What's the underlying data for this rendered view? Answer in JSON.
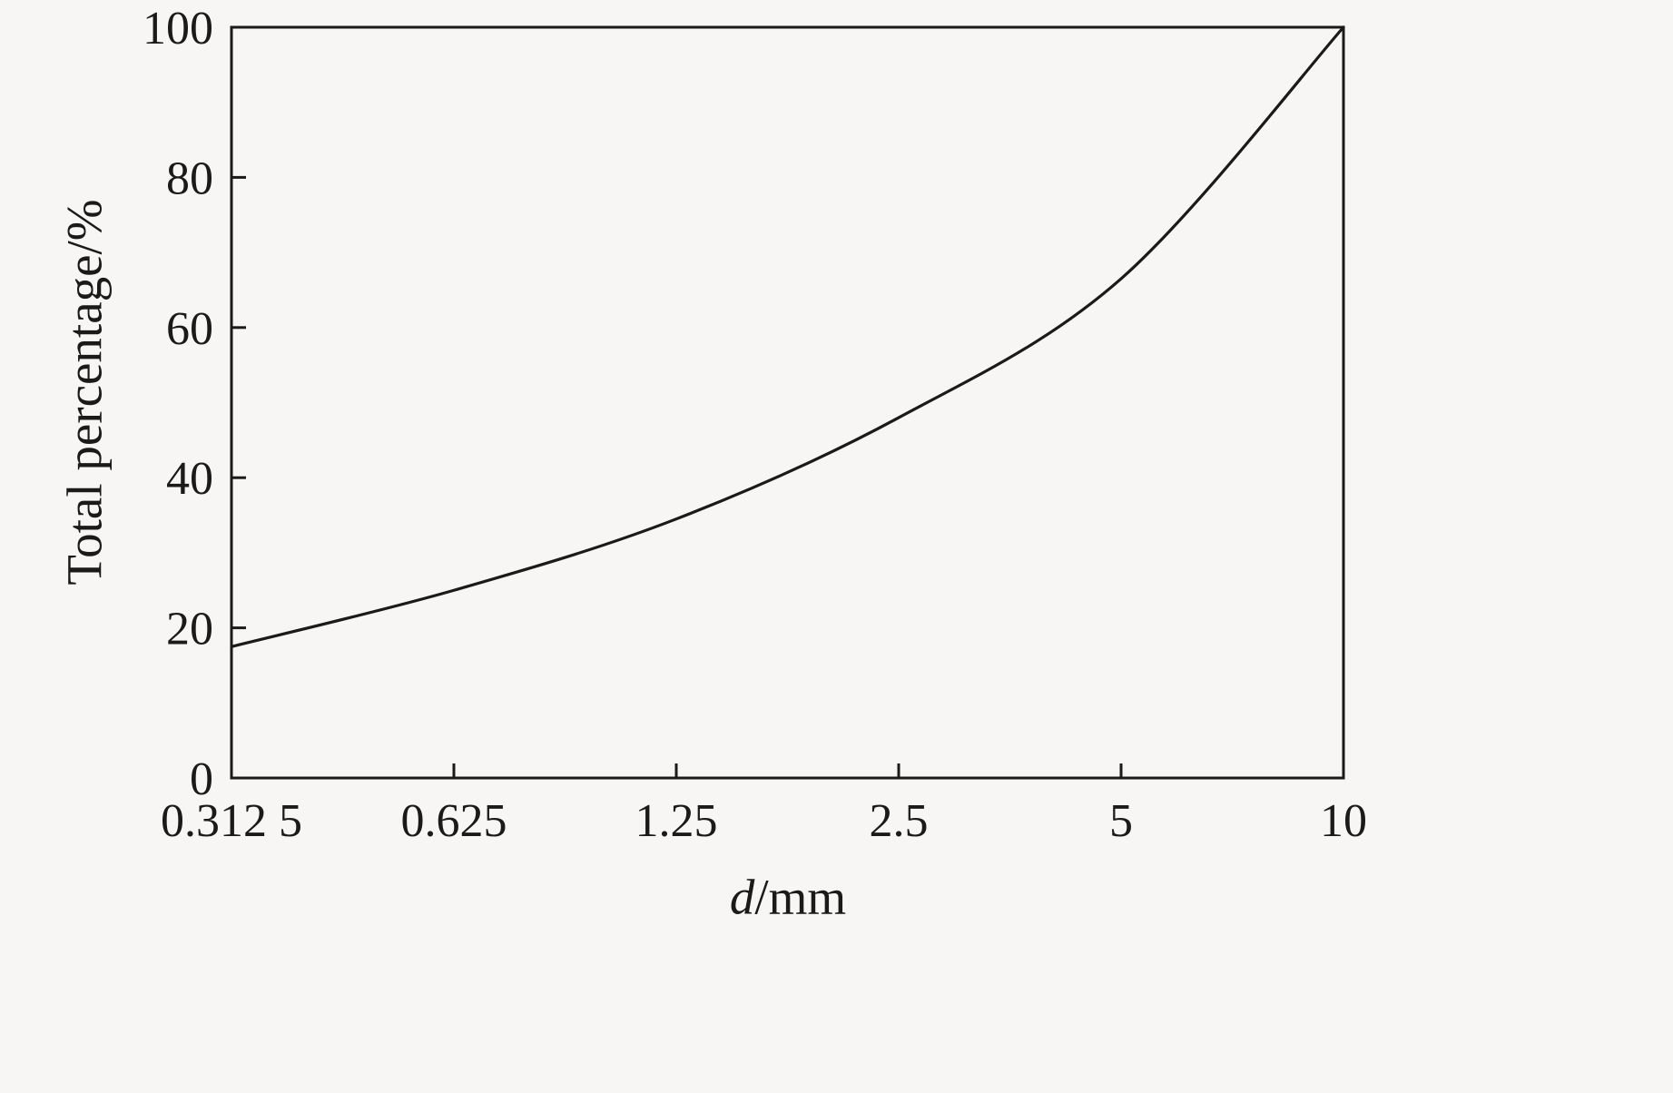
{
  "page": {
    "background": "#f7f6f4"
  },
  "chart_data": {
    "type": "line",
    "title": "",
    "xlabel": {
      "italic": "d",
      "rest": "/mm"
    },
    "ylabel": "Total percentage/%",
    "x_scale": "log",
    "xlim": [
      0.3125,
      10
    ],
    "ylim": [
      0,
      100
    ],
    "x": [
      0.3125,
      0.625,
      1.25,
      2.5,
      5,
      10
    ],
    "values": [
      17.5,
      25,
      34.5,
      48,
      66.5,
      100
    ],
    "series_name": "cumulative-total-percentage",
    "x_ticks": [
      0.3125,
      0.625,
      1.25,
      2.5,
      5,
      10
    ],
    "x_tick_labels": [
      "0.312 5",
      "0.625",
      "1.25",
      "2.5",
      "5",
      "10"
    ],
    "y_ticks": [
      0,
      20,
      40,
      60,
      80,
      100
    ],
    "y_tick_labels": [
      "0",
      "20",
      "40",
      "60",
      "80",
      "100"
    ],
    "grid": false,
    "legend": false,
    "line_color": "#1a1a1a",
    "axis_color": "#1a1a1a"
  }
}
